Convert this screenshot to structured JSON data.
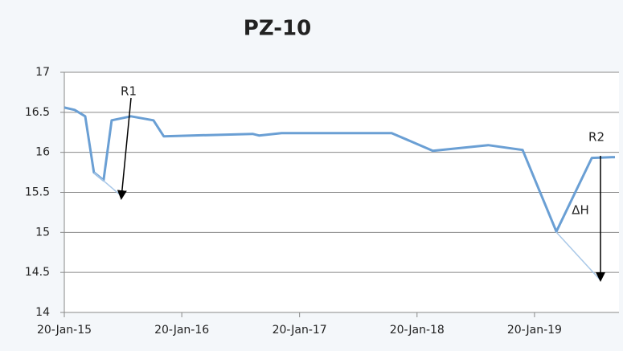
{
  "chart_data": {
    "type": "line",
    "title": "PZ-10",
    "x": [
      "2015-01-20",
      "2015-02-21",
      "2015-03-26",
      "2015-04-22",
      "2015-05-22",
      "2015-06-16",
      "2015-08-15",
      "2015-10-24",
      "2015-11-25",
      "2016-08-27",
      "2016-09-16",
      "2016-11-25",
      "2017-11-02",
      "2018-03-10",
      "2018-08-29",
      "2018-12-14",
      "2019-03-29",
      "2019-07-17",
      "2019-09-27"
    ],
    "series": [
      {
        "name": "PZ-10",
        "color": "#6a9fd4",
        "values": [
          16.56,
          16.53,
          16.45,
          15.75,
          15.65,
          16.4,
          16.45,
          16.4,
          16.2,
          16.23,
          16.21,
          16.24,
          16.24,
          16.02,
          16.09,
          16.03,
          15.01,
          15.93,
          15.94
        ]
      }
    ],
    "xlim": [
      "2015-01-20",
      "2019-09-27"
    ],
    "xticks": [
      {
        "value": "2015-01-20",
        "label": "20-Jan-15"
      },
      {
        "value": "2016-01-20",
        "label": "20-Jan-16"
      },
      {
        "value": "2017-01-20",
        "label": "20-Jan-17"
      },
      {
        "value": "2018-01-20",
        "label": "20-Jan-18"
      },
      {
        "value": "2019-01-20",
        "label": "20-Jan-19"
      }
    ],
    "ylim": [
      14,
      17
    ],
    "yticks": [
      14,
      14.5,
      15,
      15.5,
      16,
      16.5,
      17
    ],
    "grid": true,
    "annotations": [
      "R1",
      "R2",
      "ΔH"
    ]
  }
}
